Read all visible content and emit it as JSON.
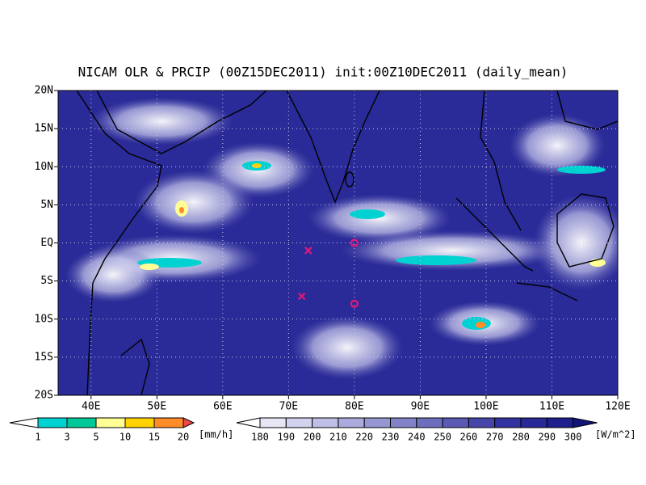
{
  "title": "NICAM OLR & PRCIP (00Z15DEC2011) init:00Z10DEC2011 (daily_mean)",
  "map": {
    "lonlim": [
      35,
      120
    ],
    "latlim": [
      -20,
      20
    ],
    "grid": true,
    "lat_ticks": [
      {
        "value": 20,
        "label": "20N"
      },
      {
        "value": 15,
        "label": "15N"
      },
      {
        "value": 10,
        "label": "10N"
      },
      {
        "value": 5,
        "label": "5N"
      },
      {
        "value": 0,
        "label": "EQ"
      },
      {
        "value": -5,
        "label": "5S"
      },
      {
        "value": -10,
        "label": "10S"
      },
      {
        "value": -15,
        "label": "15S"
      },
      {
        "value": -20,
        "label": "20S"
      }
    ],
    "lon_ticks": [
      {
        "value": 40,
        "label": "40E"
      },
      {
        "value": 50,
        "label": "50E"
      },
      {
        "value": 60,
        "label": "60E"
      },
      {
        "value": 70,
        "label": "70E"
      },
      {
        "value": 80,
        "label": "80E"
      },
      {
        "value": 90,
        "label": "90E"
      },
      {
        "value": 100,
        "label": "100E"
      },
      {
        "value": 110,
        "label": "110E"
      },
      {
        "value": 120,
        "label": "120E"
      }
    ],
    "markers": [
      {
        "symbol": "x",
        "lon": 73,
        "lat": -1,
        "color": "#e0187c"
      },
      {
        "symbol": "o",
        "lon": 80,
        "lat": 0,
        "color": "#e0187c"
      },
      {
        "symbol": "x",
        "lon": 72,
        "lat": -7,
        "color": "#e0187c"
      },
      {
        "symbol": "o",
        "lon": 80,
        "lat": -8,
        "color": "#e0187c"
      }
    ]
  },
  "precip_bar": {
    "ticks": [
      1,
      3,
      5,
      10,
      15,
      20
    ],
    "unit": "[mm/h]",
    "colors": [
      "#ffffff",
      "#00d2d2",
      "#00c896",
      "#ffff96",
      "#ffd200",
      "#ff8c28",
      "#f04646"
    ]
  },
  "olr_bar": {
    "ticks": [
      180,
      190,
      200,
      210,
      220,
      230,
      240,
      250,
      260,
      270,
      280,
      290,
      300
    ],
    "unit": "[W/m^2]",
    "colors": [
      "#ffffff",
      "#e6e6f5",
      "#d2d2ee",
      "#bebee6",
      "#aaaadc",
      "#9696d2",
      "#8282c8",
      "#6e6ebe",
      "#5a5ab4",
      "#4646aa",
      "#3232a0",
      "#282896",
      "#1e1e8c",
      "#141478"
    ]
  }
}
